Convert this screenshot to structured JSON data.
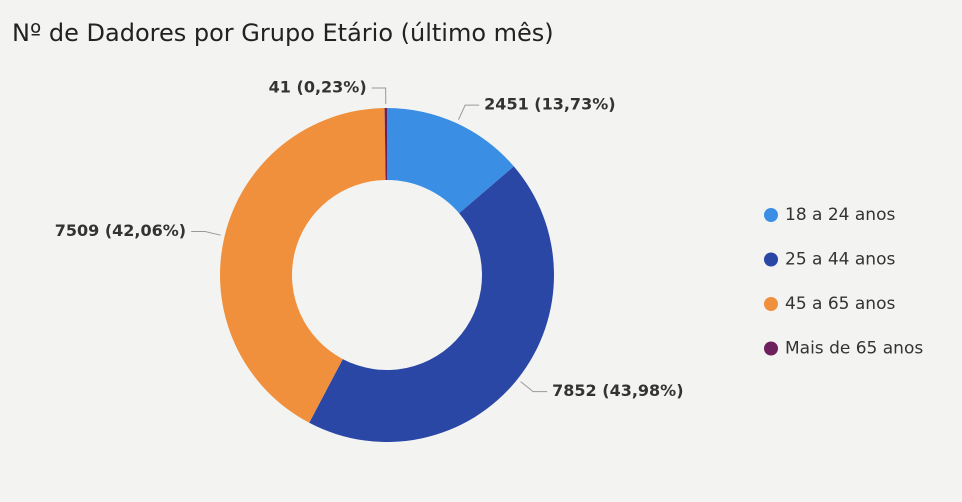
{
  "chart_data": {
    "type": "donut",
    "title": "Nº de Dadores por Grupo Etário (último mês)",
    "categories": [
      "18 a 24 anos",
      "25 a 44 anos",
      "45 a 65 anos",
      "Mais de 65 anos"
    ],
    "values": [
      2451,
      7852,
      7509,
      41
    ],
    "value_labels": [
      "2451 (13,73%)",
      "7852 (43,98%)",
      "7509 (42,06%)",
      "41 (0,23%)"
    ],
    "colors": [
      "#3a8fe5",
      "#2b47a6",
      "#f0903c",
      "#6d1f5e"
    ],
    "legend": "right"
  }
}
